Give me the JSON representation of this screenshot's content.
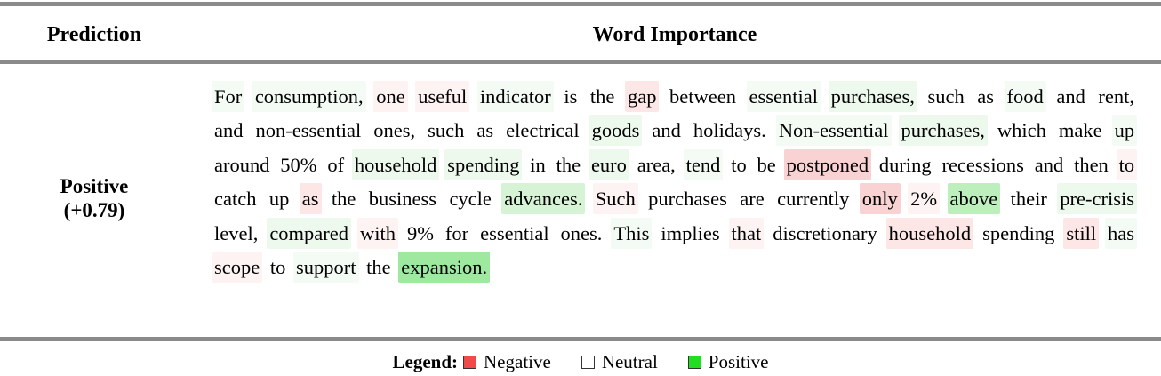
{
  "header": {
    "prediction": "Prediction",
    "word_importance": "Word Importance"
  },
  "prediction": {
    "label": "Positive",
    "score": "(+0.79)"
  },
  "words": [
    {
      "t": "For",
      "c": "#f4fbf4"
    },
    {
      "t": "consumption,",
      "c": "#f4fbf4"
    },
    {
      "t": "one",
      "c": "#fdf3f3"
    },
    {
      "t": "useful",
      "c": "#fdf3f3"
    },
    {
      "t": "indicator",
      "c": "#f4fbf4"
    },
    {
      "t": "is",
      "c": null
    },
    {
      "t": "the",
      "c": null
    },
    {
      "t": "gap",
      "c": "#fde6e6"
    },
    {
      "t": "between",
      "c": null
    },
    {
      "t": "essential",
      "c": "#f4fbf4"
    },
    {
      "t": "purchases,",
      "c": "#eef9ee"
    },
    {
      "t": "such",
      "c": null
    },
    {
      "t": "as",
      "c": null
    },
    {
      "t": "food",
      "c": "#f4fbf4"
    },
    {
      "t": "and",
      "c": null
    },
    {
      "t": "rent,",
      "c": null
    },
    {
      "t": "and",
      "c": null
    },
    {
      "t": "non-essential",
      "c": null
    },
    {
      "t": "ones,",
      "c": null
    },
    {
      "t": "such",
      "c": null
    },
    {
      "t": "as",
      "c": null
    },
    {
      "t": "electrical",
      "c": null
    },
    {
      "t": "goods",
      "c": "#eef9ee"
    },
    {
      "t": "and",
      "c": null
    },
    {
      "t": "holidays.",
      "c": null
    },
    {
      "t": "Non-essential",
      "c": "#f4fbf4"
    },
    {
      "t": "purchases,",
      "c": "#eef9ee"
    },
    {
      "t": "which",
      "c": null
    },
    {
      "t": "make",
      "c": null
    },
    {
      "t": "up",
      "c": "#f4fbf4"
    },
    {
      "t": "around",
      "c": null
    },
    {
      "t": "50%",
      "c": null
    },
    {
      "t": "of",
      "c": null
    },
    {
      "t": "household",
      "c": "#eef9ee"
    },
    {
      "t": "spending",
      "c": "#eef9ee"
    },
    {
      "t": "in",
      "c": null
    },
    {
      "t": "the",
      "c": null
    },
    {
      "t": "euro",
      "c": "#eef9ee"
    },
    {
      "t": "area,",
      "c": null
    },
    {
      "t": "tend",
      "c": "#f4fbf4"
    },
    {
      "t": "to",
      "c": null
    },
    {
      "t": "be",
      "c": null
    },
    {
      "t": "postponed",
      "c": "#f9d3d3"
    },
    {
      "t": "during",
      "c": null
    },
    {
      "t": "recessions",
      "c": null
    },
    {
      "t": "and",
      "c": null
    },
    {
      "t": "then",
      "c": null
    },
    {
      "t": "to",
      "c": "#fdf3f3"
    },
    {
      "t": "catch",
      "c": null
    },
    {
      "t": "up",
      "c": null
    },
    {
      "t": "as",
      "c": "#fde6e6"
    },
    {
      "t": "the",
      "c": null
    },
    {
      "t": "business",
      "c": null
    },
    {
      "t": "cycle",
      "c": null
    },
    {
      "t": "advances.",
      "c": "#d6f3d6"
    },
    {
      "t": "Such",
      "c": "#fdf3f3"
    },
    {
      "t": "purchases",
      "c": null
    },
    {
      "t": "are",
      "c": null
    },
    {
      "t": "currently",
      "c": null
    },
    {
      "t": "only",
      "c": "#f9d3d3"
    },
    {
      "t": "2%",
      "c": "#fdf3f3"
    },
    {
      "t": "above",
      "c": "#bdefbd"
    },
    {
      "t": "their",
      "c": null
    },
    {
      "t": "pre-crisis",
      "c": "#eef9ee"
    },
    {
      "t": "level,",
      "c": null
    },
    {
      "t": "compared",
      "c": "#eef9ee"
    },
    {
      "t": "with",
      "c": "#fdf3f3"
    },
    {
      "t": "9%",
      "c": null
    },
    {
      "t": "for",
      "c": null
    },
    {
      "t": "essential",
      "c": null
    },
    {
      "t": "ones.",
      "c": null
    },
    {
      "t": "This",
      "c": "#f4fbf4"
    },
    {
      "t": "implies",
      "c": null
    },
    {
      "t": "that",
      "c": "#fdf3f3"
    },
    {
      "t": "discretionary",
      "c": null
    },
    {
      "t": "household",
      "c": "#fde6e6"
    },
    {
      "t": "spending",
      "c": null
    },
    {
      "t": "still",
      "c": "#fde6e6"
    },
    {
      "t": "has",
      "c": "#f4fbf4"
    },
    {
      "t": "scope",
      "c": "#fdf3f3"
    },
    {
      "t": "to",
      "c": null
    },
    {
      "t": "support",
      "c": "#f4fbf4"
    },
    {
      "t": "the",
      "c": null
    },
    {
      "t": "expansion.",
      "c": "#9fe89f"
    }
  ],
  "legend": {
    "title": "Legend:",
    "items": [
      {
        "label": "Negative",
        "color": "#f04a4a"
      },
      {
        "label": "Neutral",
        "color": "#ffffff"
      },
      {
        "label": "Positive",
        "color": "#22dd22"
      }
    ]
  }
}
